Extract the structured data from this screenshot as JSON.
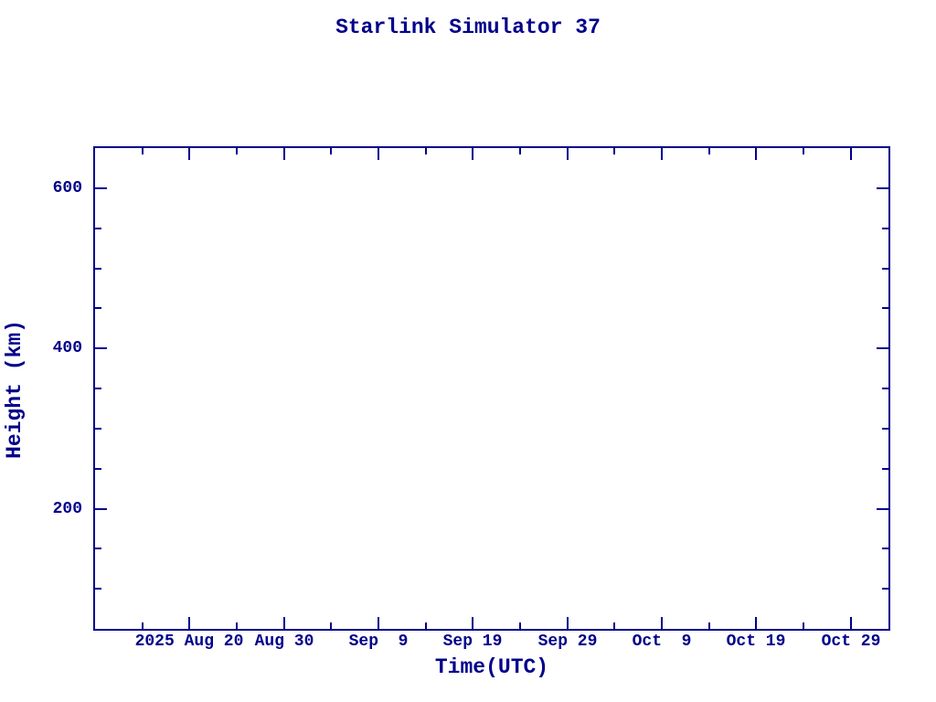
{
  "colors": {
    "accent": "#00008b",
    "background": "#ffffff"
  },
  "chart_data": {
    "type": "line",
    "title": "Starlink Simulator 37",
    "xlabel": "Time(UTC)",
    "ylabel": "Height (km)",
    "series": [],
    "grid": false,
    "legend": false,
    "x_axis": {
      "unit": "days",
      "range": [
        0,
        84
      ],
      "major_ticks": [
        {
          "pos": 10,
          "label": "2025 Aug 20"
        },
        {
          "pos": 20,
          "label": "Aug 30"
        },
        {
          "pos": 30,
          "label": "Sep  9"
        },
        {
          "pos": 40,
          "label": "Sep 19"
        },
        {
          "pos": 50,
          "label": "Sep 29"
        },
        {
          "pos": 60,
          "label": "Oct  9"
        },
        {
          "pos": 70,
          "label": "Oct 19"
        },
        {
          "pos": 80,
          "label": "Oct 29"
        }
      ],
      "minor_ticks": [
        5,
        15,
        25,
        35,
        45,
        55,
        65,
        75
      ]
    },
    "y_axis": {
      "range": [
        50,
        650
      ],
      "major_ticks": [
        {
          "pos": 200,
          "label": "200"
        },
        {
          "pos": 400,
          "label": "400"
        },
        {
          "pos": 600,
          "label": "600"
        }
      ],
      "minor_ticks": [
        100,
        150,
        250,
        300,
        350,
        450,
        500,
        550
      ]
    }
  }
}
